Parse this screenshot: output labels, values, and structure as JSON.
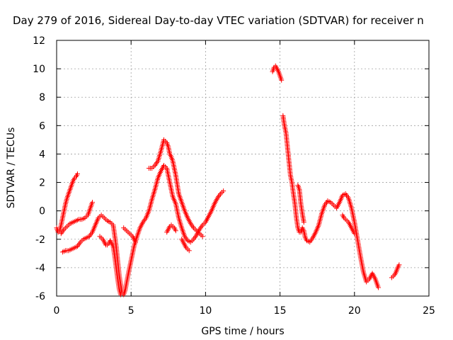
{
  "chart_data": {
    "type": "scatter",
    "title": "Day 279 of 2016, Sidereal Day-to-day VTEC variation (SDTVAR) for receiver n",
    "xlabel": "GPS time / hours",
    "ylabel": "SDTVAR / TECUs",
    "xlim": [
      0,
      25
    ],
    "ylim": [
      -6,
      12
    ],
    "xticks": [
      0,
      5,
      10,
      15,
      20,
      25
    ],
    "yticks": [
      -6,
      -4,
      -2,
      0,
      2,
      4,
      6,
      8,
      10,
      12
    ],
    "grid": true,
    "marker": "plus",
    "color": "#ff0000",
    "series": [
      {
        "x": [
          0.0,
          0.1,
          0.2,
          0.3,
          0.4,
          0.5,
          0.6,
          0.7,
          0.8,
          0.9,
          1.0,
          1.1,
          1.2,
          1.3,
          1.4
        ],
        "y": [
          -1.2,
          -1.5,
          -1.4,
          -1.0,
          -0.5,
          0.0,
          0.5,
          0.9,
          1.2,
          1.5,
          1.8,
          2.1,
          2.3,
          2.4,
          2.6
        ]
      },
      {
        "x": [
          0.3,
          0.5,
          0.7,
          0.9,
          1.1,
          1.3,
          1.5,
          1.7,
          1.9,
          2.1,
          2.2,
          2.3,
          2.4
        ],
        "y": [
          -1.6,
          -1.3,
          -1.1,
          -0.9,
          -0.8,
          -0.7,
          -0.6,
          -0.6,
          -0.5,
          -0.3,
          0.0,
          0.3,
          0.6
        ]
      },
      {
        "x": [
          0.4,
          0.6,
          0.8,
          1.0,
          1.2,
          1.4,
          1.6,
          1.8,
          2.0,
          2.2,
          2.4,
          2.6,
          2.8,
          3.0,
          3.2,
          3.4,
          3.6,
          3.8,
          4.0,
          4.1,
          4.2,
          4.3,
          4.4,
          4.5,
          4.6,
          4.8,
          5.0,
          5.2,
          5.4,
          5.6,
          5.8,
          6.0,
          6.2,
          6.4,
          6.6,
          6.8,
          7.0,
          7.2,
          7.4,
          7.6,
          7.8,
          8.0,
          8.2,
          8.4,
          8.6,
          8.8,
          9.0,
          9.2,
          9.4,
          9.6,
          9.8,
          10.0,
          10.2,
          10.4,
          10.6,
          10.8,
          11.0,
          11.2
        ],
        "y": [
          -2.9,
          -2.8,
          -2.8,
          -2.7,
          -2.6,
          -2.5,
          -2.2,
          -2.0,
          -1.9,
          -1.8,
          -1.5,
          -1.0,
          -0.5,
          -0.3,
          -0.5,
          -0.7,
          -0.8,
          -1.0,
          -2.5,
          -3.5,
          -4.5,
          -5.2,
          -5.8,
          -5.9,
          -5.6,
          -4.5,
          -3.5,
          -2.5,
          -1.8,
          -1.2,
          -0.8,
          -0.5,
          0.0,
          0.8,
          1.5,
          2.3,
          2.8,
          3.2,
          3.0,
          2.0,
          1.0,
          0.5,
          -0.5,
          -1.2,
          -1.8,
          -2.1,
          -2.2,
          -2.0,
          -1.7,
          -1.3,
          -1.0,
          -0.8,
          -0.4,
          0.0,
          0.5,
          0.9,
          1.2,
          1.4
        ]
      },
      {
        "x": [
          2.9,
          3.0,
          3.1,
          3.2,
          3.3,
          3.4,
          3.5,
          3.6,
          3.7,
          3.8,
          3.9,
          4.0,
          4.1,
          4.2,
          4.3
        ],
        "y": [
          -1.8,
          -1.9,
          -2.0,
          -2.2,
          -2.4,
          -2.4,
          -2.3,
          -2.1,
          -2.3,
          -2.5,
          -3.2,
          -4.0,
          -4.8,
          -5.5,
          -5.9
        ]
      },
      {
        "x": [
          4.5,
          4.6,
          4.7,
          4.8,
          4.9,
          5.0,
          5.1,
          5.2,
          5.3
        ],
        "y": [
          -1.2,
          -1.3,
          -1.4,
          -1.5,
          -1.6,
          -1.7,
          -1.8,
          -2.0,
          -2.2
        ]
      },
      {
        "x": [
          6.2,
          6.4,
          6.6,
          6.8,
          7.0,
          7.2,
          7.4,
          7.5,
          7.6,
          7.7,
          7.8,
          8.0,
          8.2,
          8.4,
          8.6,
          8.8,
          9.0,
          9.2,
          9.4,
          9.6,
          9.8
        ],
        "y": [
          3.0,
          3.0,
          3.2,
          3.5,
          4.2,
          5.0,
          4.8,
          4.5,
          4.0,
          3.8,
          3.5,
          2.5,
          1.2,
          0.6,
          0.0,
          -0.5,
          -0.9,
          -1.2,
          -1.4,
          -1.6,
          -1.8
        ]
      },
      {
        "x": [
          7.4,
          7.5,
          7.6,
          7.7,
          7.8,
          7.9,
          8.0
        ],
        "y": [
          -1.5,
          -1.3,
          -1.1,
          -1.0,
          -1.1,
          -1.2,
          -1.4
        ]
      },
      {
        "x": [
          8.4,
          8.5,
          8.6,
          8.7,
          8.8,
          8.9
        ],
        "y": [
          -2.0,
          -2.2,
          -2.4,
          -2.6,
          -2.7,
          -2.8
        ]
      },
      {
        "x": [
          14.5,
          14.6,
          14.7,
          14.8,
          14.9,
          15.0,
          15.1
        ],
        "y": [
          9.8,
          10.1,
          10.2,
          10.0,
          9.8,
          9.5,
          9.2
        ]
      },
      {
        "x": [
          15.2,
          15.3,
          15.4,
          15.5,
          15.6,
          15.7,
          15.8,
          15.9,
          16.0,
          16.1,
          16.2,
          16.3,
          16.4,
          16.5,
          16.6,
          16.7,
          16.8,
          17.0,
          17.2,
          17.4,
          17.6,
          17.8,
          18.0,
          18.2,
          18.4,
          18.6,
          18.8,
          19.0,
          19.2,
          19.4,
          19.6,
          19.8,
          20.0,
          20.2,
          20.4,
          20.6,
          20.8,
          21.0,
          21.2,
          21.4,
          21.6
        ],
        "y": [
          6.7,
          6.0,
          5.5,
          4.5,
          3.5,
          2.5,
          2.0,
          1.2,
          0.5,
          -0.5,
          -1.2,
          -1.5,
          -1.5,
          -1.2,
          -1.4,
          -1.9,
          -2.1,
          -2.2,
          -1.9,
          -1.5,
          -1.0,
          -0.2,
          0.4,
          0.7,
          0.6,
          0.4,
          0.2,
          0.6,
          1.1,
          1.2,
          0.9,
          0.2,
          -0.8,
          -2.0,
          -3.2,
          -4.3,
          -5.0,
          -4.8,
          -4.4,
          -4.8,
          -5.4
        ]
      },
      {
        "x": [
          16.2,
          16.3,
          16.4,
          16.5,
          16.6
        ],
        "y": [
          1.8,
          1.5,
          0.5,
          -0.2,
          -0.8
        ]
      },
      {
        "x": [
          19.2,
          19.3,
          19.4,
          19.5,
          19.6,
          19.7,
          19.8,
          19.9,
          20.0
        ],
        "y": [
          -0.3,
          -0.5,
          -0.6,
          -0.7,
          -0.8,
          -1.0,
          -1.2,
          -1.4,
          -1.6
        ]
      },
      {
        "x": [
          22.5,
          22.6,
          22.7,
          22.8,
          22.9,
          23.0
        ],
        "y": [
          -4.7,
          -4.6,
          -4.5,
          -4.3,
          -4.0,
          -3.8
        ]
      }
    ]
  }
}
